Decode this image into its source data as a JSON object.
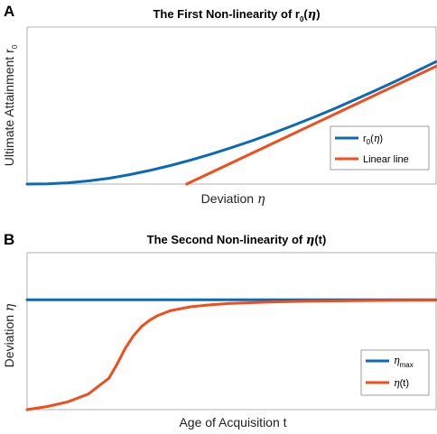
{
  "chart_data": [
    {
      "panel_label": "A",
      "type": "line",
      "title": {
        "text": "The First Non-linearity of r",
        "sub": "0",
        "open": "(",
        "sym": "η",
        "close": ")"
      },
      "xlabel": {
        "text": "Deviation ",
        "sym": "η"
      },
      "ylabel": {
        "text": "Ultimate Attainment r",
        "sub": "0"
      },
      "xlim": [
        0,
        1
      ],
      "ylim": [
        0,
        1
      ],
      "grid": false,
      "ticks": false,
      "legend_placement": "lower-right",
      "colors": {
        "series1": "#0a6ab8",
        "series2": "#f04e1b"
      },
      "series": [
        {
          "legend": {
            "text": "r",
            "sub": "0",
            "open": "(",
            "sym": "η",
            "close": ")"
          },
          "color": "#0a6ab8",
          "x": [
            0,
            0.05,
            0.1,
            0.15,
            0.2,
            0.25,
            0.3,
            0.35,
            0.4,
            0.45,
            0.5,
            0.55,
            0.6,
            0.65,
            0.7,
            0.75,
            0.8,
            0.85,
            0.9,
            0.95,
            1.0
          ],
          "y": [
            0,
            0.001,
            0.008,
            0.02,
            0.037,
            0.06,
            0.087,
            0.118,
            0.153,
            0.191,
            0.232,
            0.276,
            0.323,
            0.373,
            0.425,
            0.479,
            0.536,
            0.594,
            0.654,
            0.716,
            0.78
          ]
        },
        {
          "legend": {
            "text": "Linear line"
          },
          "color": "#f04e1b",
          "x": [
            0.39,
            1.0
          ],
          "y": [
            0,
            0.75
          ]
        }
      ]
    },
    {
      "panel_label": "B",
      "type": "line",
      "title": {
        "text": "The Second Non-linearity of ",
        "sym": "η",
        "after": "(t)"
      },
      "xlabel": {
        "text": "Age of Acquisition t"
      },
      "ylabel": {
        "text": "Deviation ",
        "sym": "η"
      },
      "xlim": [
        0,
        1
      ],
      "ylim": [
        0,
        1
      ],
      "grid": false,
      "ticks": false,
      "legend_placement": "lower-right",
      "colors": {
        "series1": "#0a6ab8",
        "series2": "#f04e1b"
      },
      "series": [
        {
          "legend": {
            "sym": "η",
            "sub": "max"
          },
          "color": "#0a6ab8",
          "x": [
            0,
            1
          ],
          "y": [
            0.7,
            0.7
          ]
        },
        {
          "legend": {
            "sym": "η",
            "after": "(t)"
          },
          "color": "#f04e1b",
          "x": [
            0,
            0.05,
            0.1,
            0.15,
            0.2,
            0.22,
            0.24,
            0.26,
            0.28,
            0.3,
            0.32,
            0.35,
            0.4,
            0.45,
            0.5,
            0.6,
            0.7,
            0.8,
            0.9,
            1.0
          ],
          "y": [
            0.0,
            0.02,
            0.05,
            0.1,
            0.2,
            0.29,
            0.39,
            0.47,
            0.53,
            0.57,
            0.6,
            0.63,
            0.655,
            0.668,
            0.677,
            0.686,
            0.691,
            0.694,
            0.696,
            0.697
          ]
        }
      ]
    }
  ]
}
